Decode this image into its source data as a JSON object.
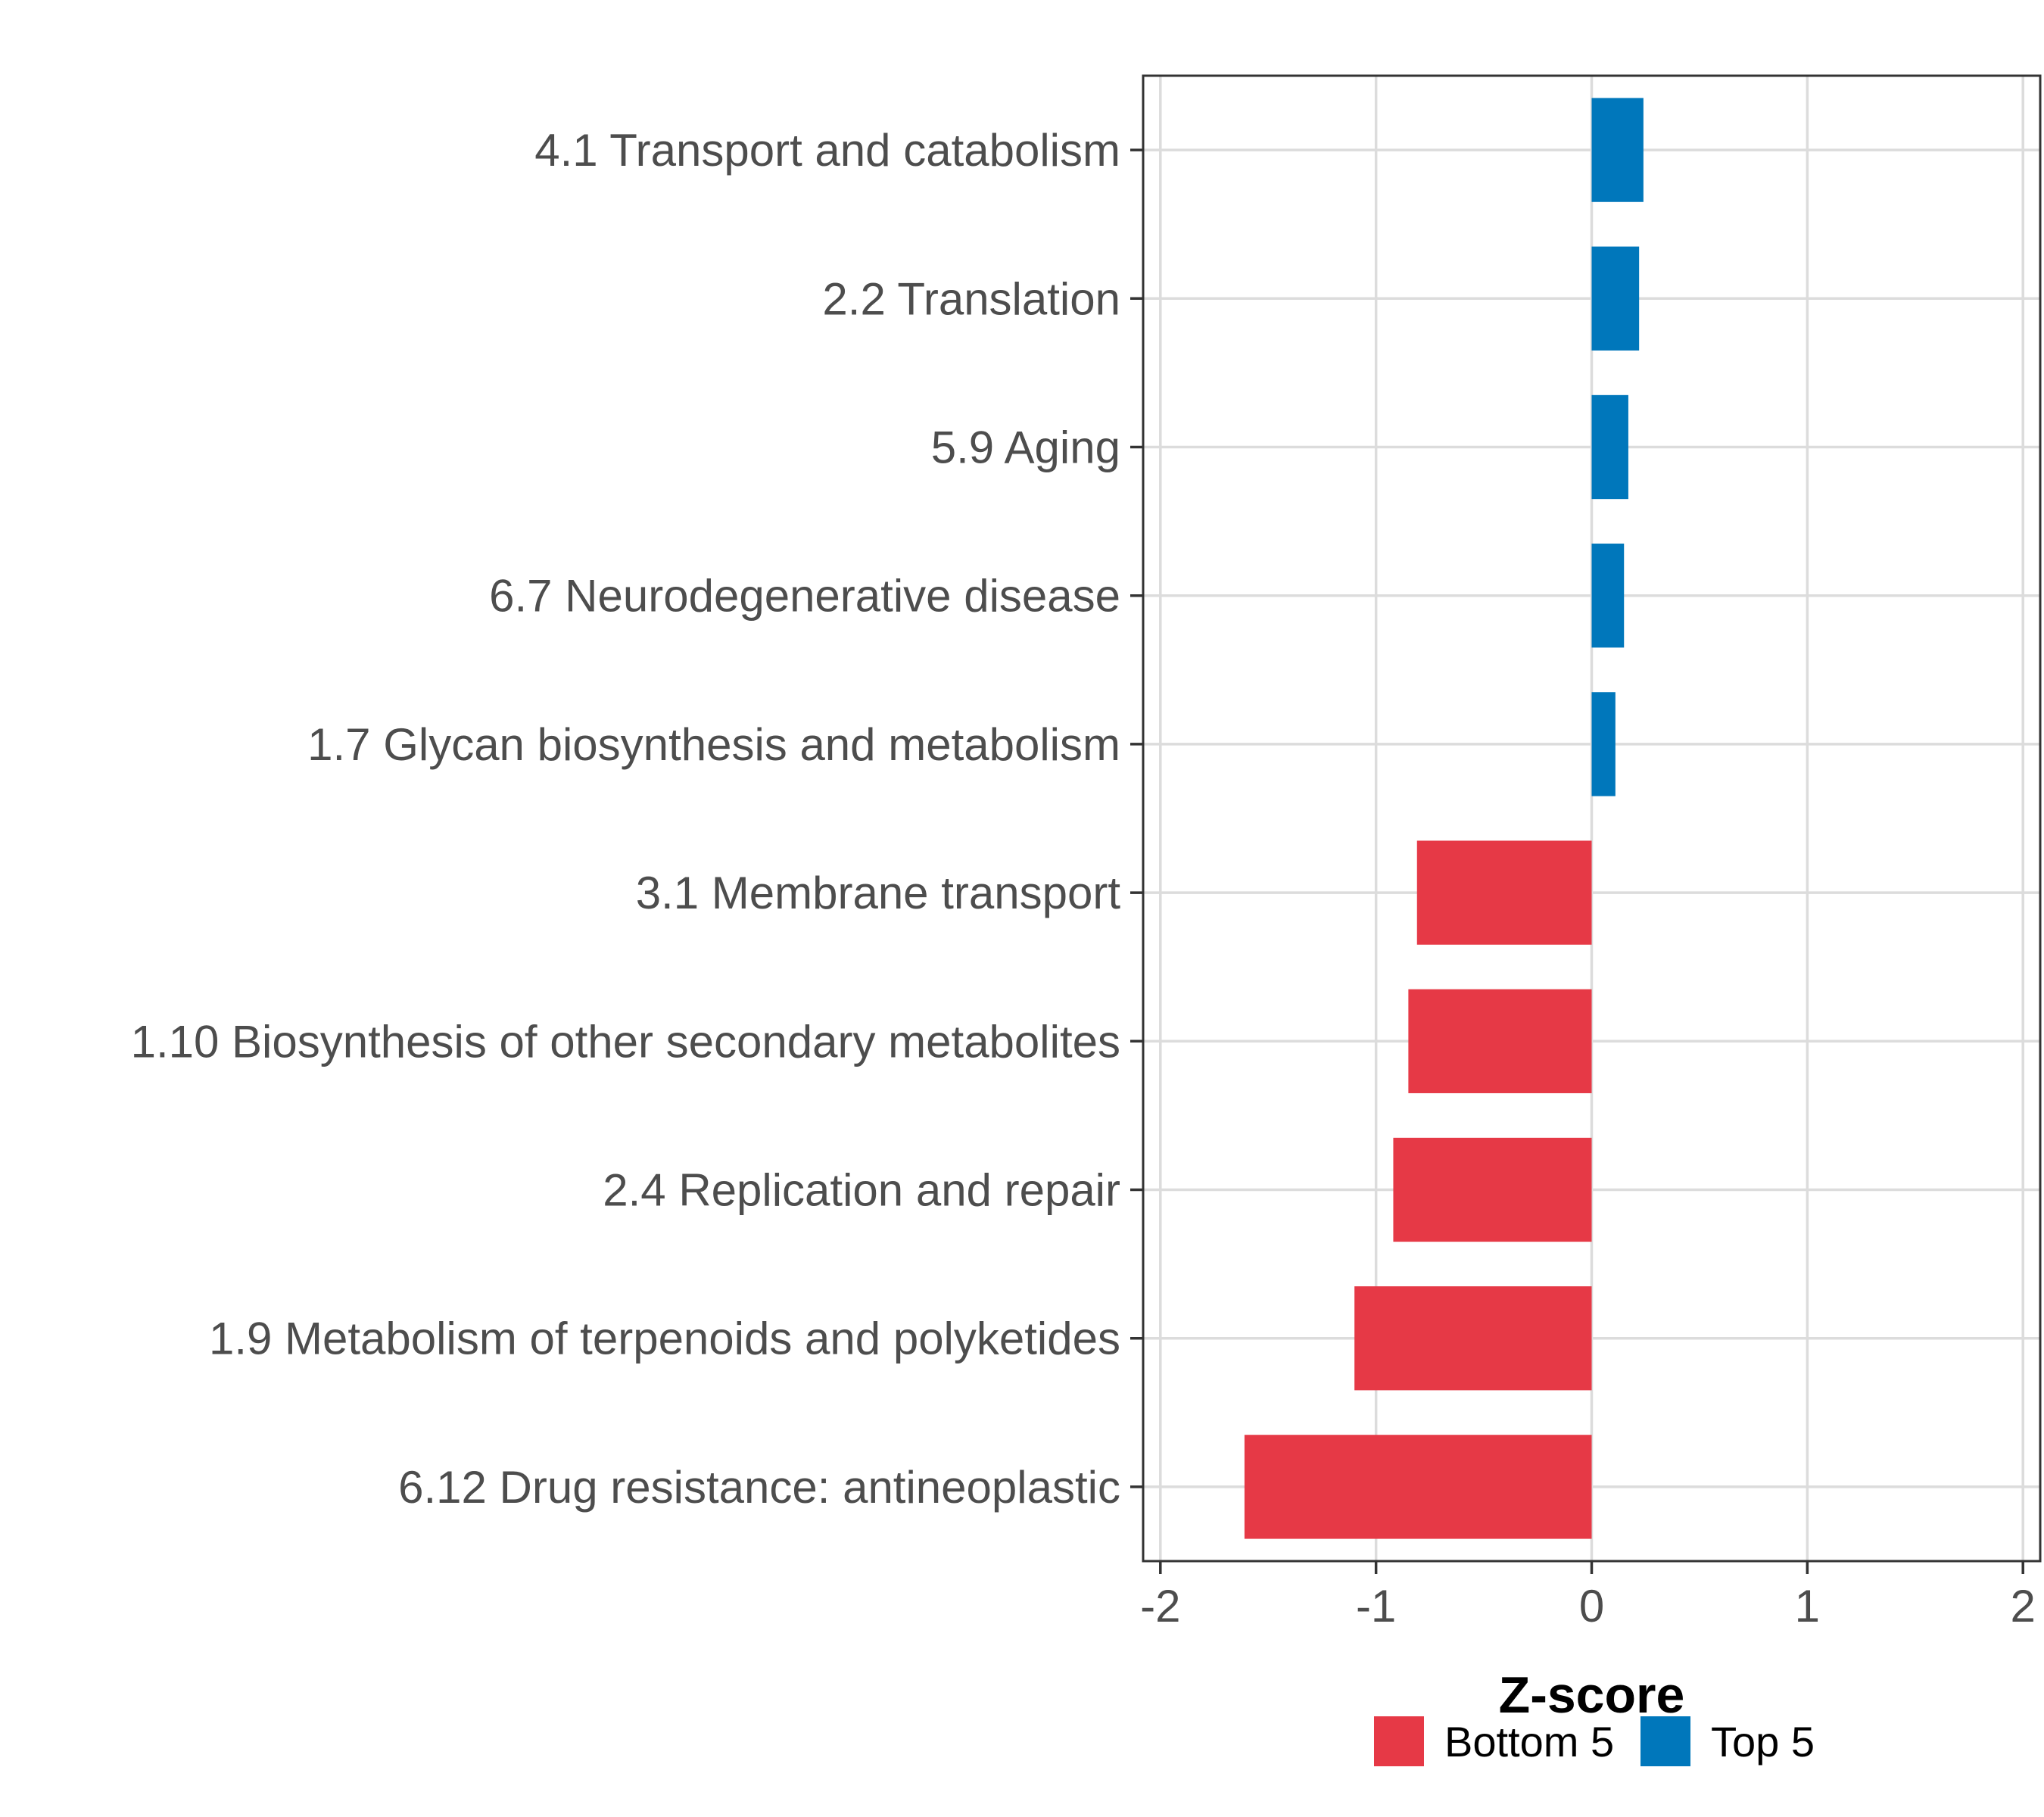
{
  "chart_data": {
    "type": "bar",
    "orientation": "horizontal",
    "title": "",
    "xlabel": "Z-score",
    "ylabel": "",
    "xlim": [
      -2.08,
      2.08
    ],
    "xticks": [
      -2,
      -1,
      0,
      1,
      2
    ],
    "xtick_labels": [
      "-2",
      "-1",
      "0",
      "1",
      "2"
    ],
    "grid": true,
    "legend_position": "bottom",
    "colors": {
      "Bottom 5": "#e63946",
      "Top 5": "#0077bb"
    },
    "legend": [
      "Bottom 5",
      "Top 5"
    ],
    "categories": [
      "4.1 Transport and catabolism",
      "2.2 Translation",
      "5.9 Aging",
      "6.7 Neurodegenerative disease",
      "1.7 Glycan biosynthesis and metabolism",
      "3.1 Membrane transport",
      "1.10 Biosynthesis of other secondary metabolites",
      "2.4 Replication and repair",
      "1.9 Metabolism of terpenoids and polyketides",
      "6.12 Drug resistance: antineoplastic"
    ],
    "values": [
      0.24,
      0.22,
      0.17,
      0.15,
      0.11,
      -0.81,
      -0.85,
      -0.92,
      -1.1,
      -1.61
    ],
    "groups": [
      "Top 5",
      "Top 5",
      "Top 5",
      "Top 5",
      "Top 5",
      "Bottom 5",
      "Bottom 5",
      "Bottom 5",
      "Bottom 5",
      "Bottom 5"
    ]
  }
}
